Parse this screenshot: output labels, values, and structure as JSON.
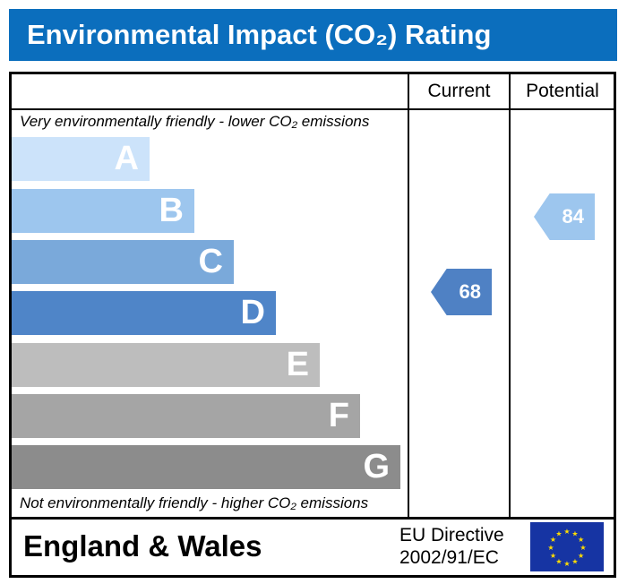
{
  "title": "Environmental Impact (CO₂) Rating",
  "columns": {
    "current": "Current",
    "potential": "Potential"
  },
  "top_note": "Very environmentally friendly - lower CO₂ emissions",
  "bottom_note": "Not environmentally friendly - higher CO₂ emissions",
  "footer": {
    "region": "England & Wales",
    "directive_line1": "EU Directive",
    "directive_line2": "2002/91/EC"
  },
  "chart_data": {
    "type": "bar",
    "title": "Environmental Impact (CO₂) Rating",
    "categories": [
      "A",
      "B",
      "C",
      "D",
      "E",
      "F",
      "G"
    ],
    "colors": [
      "#cce3fa",
      "#9dc6ee",
      "#7aa9da",
      "#4f85c8",
      "#bdbdbd",
      "#a5a5a5",
      "#8c8c8c"
    ],
    "current": {
      "value": 68,
      "band": "D",
      "color": "#4f81c4"
    },
    "potential": {
      "value": 84,
      "band": "B",
      "color": "#9dc6ee"
    }
  }
}
